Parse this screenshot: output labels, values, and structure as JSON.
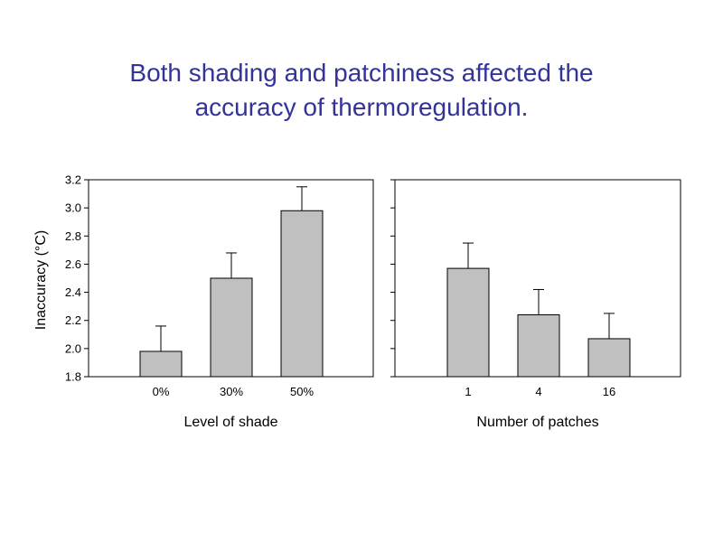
{
  "slide": {
    "title_line1": "Both shading and patchiness affected the",
    "title_line2": "accuracy of thermoregulation."
  },
  "colors": {
    "title": "#333399",
    "bar_fill": "#c0c0c0",
    "bar_stroke": "#000000"
  },
  "chart_data": [
    {
      "type": "bar",
      "categories": [
        "0%",
        "30%",
        "50%"
      ],
      "values": [
        1.98,
        2.5,
        2.98
      ],
      "error_upper": [
        2.16,
        2.68,
        3.15
      ],
      "xlabel": "Level of shade",
      "ylabel": "Inaccuracy (°C)",
      "ylim": [
        1.8,
        3.2
      ],
      "yticks": [
        "1.8",
        "2.0",
        "2.2",
        "2.4",
        "2.6",
        "2.8",
        "3.0",
        "3.2"
      ],
      "grid": false
    },
    {
      "type": "bar",
      "categories": [
        "1",
        "4",
        "16"
      ],
      "values": [
        2.57,
        2.24,
        2.07
      ],
      "error_upper": [
        2.75,
        2.42,
        2.25
      ],
      "xlabel": "Number of patches",
      "ylabel": "",
      "ylim": [
        1.8,
        3.2
      ],
      "grid": false
    }
  ]
}
